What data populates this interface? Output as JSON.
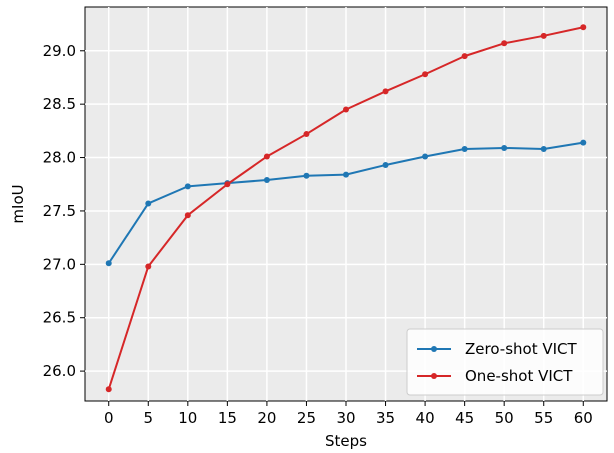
{
  "chart_data": {
    "type": "line",
    "title": "",
    "xlabel": "Steps",
    "ylabel": "mIoU",
    "x": [
      0,
      5,
      10,
      15,
      20,
      25,
      30,
      35,
      40,
      45,
      50,
      55,
      60
    ],
    "xlim": [
      -3,
      63
    ],
    "ylim": [
      25.72,
      29.41
    ],
    "xticks": [
      0,
      5,
      10,
      15,
      20,
      25,
      30,
      35,
      40,
      45,
      50,
      55,
      60
    ],
    "xtick_labels": [
      "0",
      "5",
      "10",
      "15",
      "20",
      "25",
      "30",
      "35",
      "40",
      "45",
      "50",
      "55",
      "60"
    ],
    "yticks": [
      26.0,
      26.5,
      27.0,
      27.5,
      28.0,
      28.5,
      29.0
    ],
    "ytick_labels": [
      "26.0",
      "26.5",
      "27.0",
      "27.5",
      "28.0",
      "28.5",
      "29.0"
    ],
    "grid": true,
    "legend_position": "lower-right",
    "series": [
      {
        "name": "Zero-shot VICT",
        "color": "#1f77b4",
        "marker": "circle",
        "values": [
          27.01,
          27.57,
          27.73,
          27.76,
          27.79,
          27.83,
          27.84,
          27.93,
          28.01,
          28.08,
          28.09,
          28.08,
          28.14
        ]
      },
      {
        "name": "One-shot VICT",
        "color": "#d62728",
        "marker": "circle",
        "values": [
          25.83,
          26.98,
          27.46,
          27.75,
          28.01,
          28.22,
          28.45,
          28.62,
          28.78,
          28.95,
          29.07,
          29.14,
          29.22
        ]
      }
    ]
  }
}
